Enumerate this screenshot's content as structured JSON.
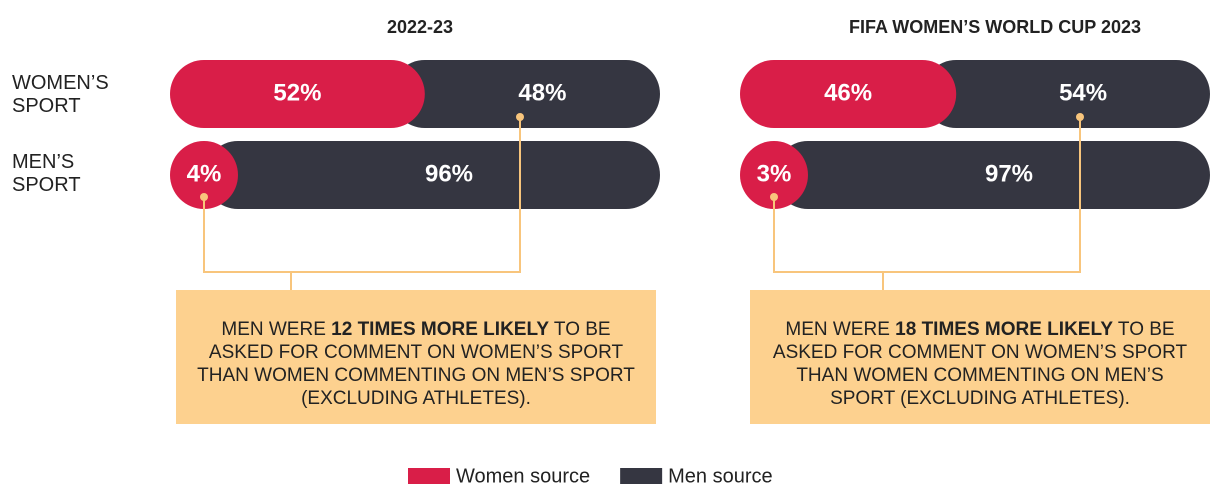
{
  "chart_data": [
    {
      "type": "bar",
      "orientation": "horizontal",
      "stacked": true,
      "title": "2022-23",
      "categories": [
        "WOMEN’S SPORT",
        "MEN’S SPORT"
      ],
      "series": [
        {
          "name": "Women source",
          "color": "#d91e48",
          "values": [
            52,
            4
          ],
          "value_labels": [
            "52%",
            "4%"
          ]
        },
        {
          "name": "Men source",
          "color": "#353641",
          "values": [
            48,
            96
          ],
          "value_labels": [
            "48%",
            "96%"
          ]
        }
      ],
      "xlim": [
        0,
        100
      ],
      "annotation": {
        "before": "MEN WERE ",
        "bold": "12 TIMES MORE LIKELY",
        "after": " TO BE ASKED FOR COMMENT ON WOMEN’S SPORT THAN WOMEN COMMENTING ON MEN’S SPORT (EXCLUDING ATHLETES)."
      }
    },
    {
      "type": "bar",
      "orientation": "horizontal",
      "stacked": true,
      "title": "FIFA WOMEN’S WORLD CUP 2023",
      "series": [
        {
          "color": "#d91e48",
          "values": [
            46,
            3
          ],
          "value_labels": [
            "46%",
            "3%"
          ]
        },
        {
          "color": "#353641",
          "values": [
            54,
            97
          ],
          "value_labels": [
            "54%",
            "97%"
          ]
        }
      ],
      "xlim": [
        0,
        100
      ],
      "annotation": {
        "before": "MEN WERE ",
        "bold": "18 TIMES MORE LIKELY",
        "after": " TO BE ASKED FOR COMMENT ON WOMEN’S SPORT THAN WOMEN COMMENTING ON MEN’S SPORT (EXCLUDING ATHLETES)."
      }
    }
  ]
}
